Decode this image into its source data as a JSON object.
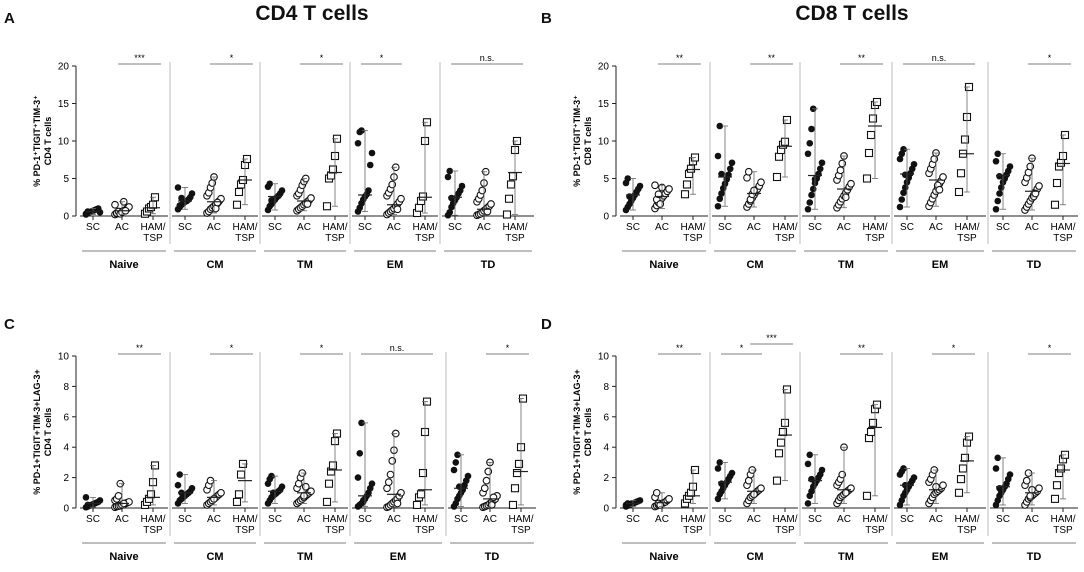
{
  "titles": {
    "left": "CD4 T cells",
    "right": "CD8 T cells"
  },
  "chart_data": [
    {
      "panel": "A",
      "type": "scatter",
      "ylabel_lines": [
        "% PD-1⁺TIGIT⁺TIM-3⁺",
        "CD4 T cells"
      ],
      "ylim": [
        0,
        20
      ],
      "yticks": [
        "0",
        "5",
        "10",
        "15",
        "20"
      ],
      "xlabels": [
        "SC",
        "AC",
        "HAM/TSP"
      ],
      "groups": [
        {
          "name": "Naive",
          "sig": "***",
          "sig_span": "AC-HAM",
          "SC": [
            0.2,
            0.4,
            0.5,
            0.6,
            0.7,
            0.8,
            0.9,
            1.0,
            0.5,
            0.3,
            0.6
          ],
          "AC": [
            0.2,
            0.3,
            0.4,
            0.5,
            0.6,
            0.7,
            0.8,
            1.0,
            1.2,
            1.5,
            0.4,
            0.6,
            0.3,
            0.5,
            1.9,
            0.7
          ],
          "HAM": [
            0.3,
            0.6,
            1.0,
            1.2,
            1.5,
            2.5
          ],
          "mean": {
            "SC": 0.6,
            "AC": 0.7,
            "HAM": 1.1
          }
        },
        {
          "name": "CM",
          "sig": "*",
          "sig_span": "AC-HAM",
          "SC": [
            0.9,
            1.2,
            1.5,
            1.7,
            1.9,
            2.0,
            2.2,
            2.5,
            3.0,
            3.8,
            1.4,
            2.4
          ],
          "AC": [
            0.4,
            0.6,
            0.9,
            1.1,
            1.3,
            1.5,
            1.7,
            2.0,
            2.3,
            2.7,
            3.1,
            3.8,
            4.4,
            5.2,
            1.0,
            1.8
          ],
          "HAM": [
            1.5,
            3.2,
            4.2,
            4.8,
            6.8,
            7.6
          ],
          "mean": {
            "SC": 2.0,
            "AC": 1.9,
            "HAM": 4.8
          }
        },
        {
          "name": "TM",
          "sig": "*",
          "sig_span": "AC-HAM",
          "SC": [
            0.8,
            1.3,
            1.6,
            1.9,
            2.2,
            2.5,
            2.7,
            3.0,
            3.4,
            3.9,
            4.3,
            2.1
          ],
          "AC": [
            0.7,
            0.9,
            1.1,
            1.3,
            1.5,
            1.7,
            1.9,
            2.1,
            2.4,
            2.7,
            3.0,
            3.5,
            4.1,
            4.6,
            5.0,
            1.6
          ],
          "HAM": [
            1.3,
            5.0,
            5.4,
            6.2,
            8.0,
            10.3
          ],
          "mean": {
            "SC": 2.6,
            "AC": 2.0,
            "HAM": 5.8
          }
        },
        {
          "name": "EM",
          "sig": "*",
          "sig_span": "SC-AC",
          "SC": [
            0.6,
            1.1,
            1.7,
            2.2,
            2.6,
            2.9,
            3.4,
            6.8,
            8.4,
            9.7,
            11.2,
            11.4
          ],
          "AC": [
            0.2,
            0.4,
            0.6,
            0.8,
            1.0,
            1.3,
            1.6,
            1.9,
            2.3,
            2.7,
            3.1,
            3.6,
            4.2,
            5.2,
            6.5,
            0.9
          ],
          "HAM": [
            0.4,
            1.1,
            2.0,
            2.6,
            10.0,
            12.5
          ],
          "mean": {
            "SC": 2.8,
            "AC": 1.5,
            "HAM": 2.5
          }
        },
        {
          "name": "TD",
          "sig": "n.s.",
          "sig_span": "SC-HAM",
          "SC": [
            0.1,
            0.5,
            1.2,
            1.7,
            2.1,
            2.5,
            3.0,
            3.4,
            4.0,
            5.2,
            6.0,
            2.4
          ],
          "AC": [
            0.1,
            0.2,
            0.3,
            0.5,
            0.7,
            0.9,
            1.1,
            1.3,
            1.6,
            1.9,
            2.3,
            2.8,
            3.4,
            4.4,
            5.9,
            0.6
          ],
          "HAM": [
            0.2,
            2.3,
            4.2,
            5.3,
            8.8,
            10.0
          ],
          "mean": {
            "SC": 2.5,
            "AC": 0.9,
            "HAM": 5.8
          }
        }
      ]
    },
    {
      "panel": "B",
      "type": "scatter",
      "ylabel_lines": [
        "% PD-1⁺TIGIT⁺TIM-3⁺",
        "CD8 T cells"
      ],
      "ylim": [
        0,
        20
      ],
      "yticks": [
        "0",
        "5",
        "10",
        "15",
        "20"
      ],
      "xlabels": [
        "SC",
        "AC",
        "HAM/TSP"
      ],
      "groups": [
        {
          "name": "Naive",
          "sig": "**",
          "sig_span": "AC-HAM",
          "SC": [
            0.8,
            1.2,
            1.6,
            2.0,
            2.4,
            2.8,
            3.2,
            3.6,
            4.0,
            4.4,
            5.0,
            2.6
          ],
          "AC": [
            1.0,
            1.4,
            1.8,
            2.1,
            2.4,
            2.7,
            3.0,
            3.3,
            3.6,
            4.1,
            2.2,
            2.9,
            1.6,
            3.8
          ],
          "HAM": [
            2.9,
            4.2,
            5.6,
            6.3,
            7.3,
            7.8
          ],
          "mean": {
            "SC": 2.8,
            "AC": 2.6,
            "HAM": 6.2
          }
        },
        {
          "name": "CM",
          "sig": "**",
          "sig_span": "AC-HAM",
          "SC": [
            1.3,
            2.3,
            3.0,
            3.7,
            4.3,
            4.9,
            5.5,
            6.3,
            7.1,
            8.0,
            12.0,
            5.6
          ],
          "AC": [
            1.2,
            1.6,
            2.0,
            2.4,
            2.8,
            3.2,
            3.6,
            4.0,
            4.5,
            5.1,
            5.9,
            2.2,
            2.9,
            3.4
          ],
          "HAM": [
            5.2,
            7.9,
            8.8,
            9.5,
            9.9,
            12.8
          ],
          "mean": {
            "SC": 5.2,
            "AC": 3.0,
            "HAM": 9.3
          }
        },
        {
          "name": "TM",
          "sig": "**",
          "sig_span": "AC-HAM",
          "SC": [
            0.9,
            1.8,
            2.8,
            3.6,
            4.4,
            5.0,
            5.6,
            6.3,
            7.1,
            8.3,
            9.7,
            11.6,
            14.3,
            4.9
          ],
          "AC": [
            1.1,
            1.5,
            1.9,
            2.3,
            2.7,
            3.1,
            3.5,
            3.9,
            4.3,
            4.8,
            5.4,
            6.1,
            7.0,
            8.0,
            2.5
          ],
          "HAM": [
            5.0,
            8.4,
            10.8,
            13.0,
            14.8,
            15.2
          ],
          "mean": {
            "SC": 5.4,
            "AC": 3.6,
            "HAM": 12.0
          }
        },
        {
          "name": "EM",
          "sig": "n.s.",
          "sig_span": "SC-HAM",
          "SC": [
            1.2,
            2.2,
            3.1,
            3.8,
            4.5,
            5.1,
            5.7,
            6.3,
            6.9,
            7.6,
            8.3,
            8.9,
            5.5
          ],
          "AC": [
            1.3,
            1.8,
            2.3,
            2.8,
            3.3,
            3.8,
            4.3,
            4.7,
            5.2,
            5.7,
            6.3,
            6.9,
            7.6,
            8.4,
            4.1,
            3.5
          ],
          "HAM": [
            3.2,
            5.7,
            8.3,
            10.2,
            13.2,
            17.2
          ],
          "mean": {
            "SC": 5.6,
            "AC": 4.8,
            "HAM": 8.3
          }
        },
        {
          "name": "TD",
          "sig": "*",
          "sig_span": "AC-HAM",
          "SC": [
            0.9,
            2.0,
            3.0,
            3.8,
            4.5,
            5.0,
            5.5,
            6.0,
            6.6,
            7.3,
            8.3,
            5.3
          ],
          "AC": [
            0.8,
            1.2,
            1.6,
            2.0,
            2.4,
            2.8,
            3.2,
            3.6,
            4.0,
            4.5,
            5.1,
            5.8,
            6.6,
            7.7,
            2.6,
            3.0
          ],
          "HAM": [
            1.5,
            4.4,
            6.6,
            7.1,
            8.0,
            10.8
          ],
          "mean": {
            "SC": 5.4,
            "AC": 3.3,
            "HAM": 7.0
          }
        }
      ]
    },
    {
      "panel": "C",
      "type": "scatter",
      "ylabel_lines": [
        "% PD-1+TIGIT+TIM-3+LAG-3+",
        "CD4 T cells"
      ],
      "ylim": [
        0,
        10
      ],
      "yticks": [
        "0",
        "2",
        "4",
        "6",
        "8",
        "10"
      ],
      "xlabels": [
        "SC",
        "AC",
        "HAM/TSP"
      ],
      "groups": [
        {
          "name": "Naive",
          "sig": "**",
          "sig_span": "AC-HAM",
          "SC": [
            0.05,
            0.1,
            0.15,
            0.2,
            0.25,
            0.3,
            0.35,
            0.4,
            0.5,
            0.7,
            0.2
          ],
          "AC": [
            0.05,
            0.1,
            0.12,
            0.15,
            0.2,
            0.25,
            0.3,
            0.35,
            0.4,
            0.5,
            0.6,
            0.8,
            1.6,
            0.2,
            0.3
          ],
          "HAM": [
            0.2,
            0.4,
            0.6,
            0.9,
            1.7,
            2.8
          ],
          "mean": {
            "SC": 0.3,
            "AC": 0.3,
            "HAM": 0.7
          }
        },
        {
          "name": "CM",
          "sig": "*",
          "sig_span": "AC-HAM",
          "SC": [
            0.3,
            0.5,
            0.6,
            0.7,
            0.8,
            0.9,
            1.0,
            1.1,
            1.3,
            1.5,
            2.2,
            1.0
          ],
          "AC": [
            0.2,
            0.3,
            0.4,
            0.5,
            0.6,
            0.7,
            0.8,
            0.9,
            1.0,
            1.2,
            1.5,
            1.8,
            0.5,
            0.6
          ],
          "HAM": [
            0.4,
            0.9,
            2.2,
            2.9
          ],
          "mean": {
            "SC": 1.0,
            "AC": 0.7,
            "HAM": 1.8
          }
        },
        {
          "name": "TM",
          "sig": "*",
          "sig_span": "AC-HAM",
          "SC": [
            0.3,
            0.5,
            0.7,
            0.8,
            0.9,
            1.0,
            1.1,
            1.2,
            1.4,
            1.6,
            1.9,
            2.1,
            1.0
          ],
          "AC": [
            0.3,
            0.4,
            0.5,
            0.6,
            0.7,
            0.8,
            0.9,
            1.0,
            1.1,
            1.3,
            1.6,
            2.0,
            2.3,
            0.8,
            1.4
          ],
          "HAM": [
            0.4,
            1.6,
            2.4,
            2.8,
            4.4,
            4.9
          ],
          "mean": {
            "SC": 1.1,
            "AC": 1.0,
            "HAM": 2.5
          }
        },
        {
          "name": "EM",
          "sig": "n.s.",
          "sig_span": "SC-HAM",
          "SC": [
            0.1,
            0.2,
            0.3,
            0.4,
            0.6,
            0.8,
            1.0,
            1.3,
            1.6,
            2.0,
            3.6,
            5.6,
            0.5
          ],
          "AC": [
            0.05,
            0.1,
            0.2,
            0.3,
            0.4,
            0.5,
            0.6,
            0.8,
            1.0,
            1.3,
            1.7,
            2.2,
            3.1,
            3.8,
            4.9,
            0.3
          ],
          "HAM": [
            0.2,
            0.7,
            0.9,
            2.3,
            5.0,
            7.0
          ],
          "mean": {
            "SC": 0.8,
            "AC": 0.9,
            "HAM": 1.2
          }
        },
        {
          "name": "TD",
          "sig": "*",
          "sig_span": "AC-HAM",
          "SC": [
            0.1,
            0.3,
            0.6,
            0.8,
            1.0,
            1.2,
            1.5,
            1.8,
            2.1,
            2.5,
            3.0,
            3.5,
            1.4
          ],
          "AC": [
            0.05,
            0.1,
            0.15,
            0.2,
            0.3,
            0.4,
            0.5,
            0.6,
            0.8,
            1.0,
            1.3,
            1.8,
            2.4,
            3.0,
            0.2,
            0.7
          ],
          "HAM": [
            0.2,
            1.3,
            2.3,
            2.9,
            4.0,
            7.2
          ],
          "mean": {
            "SC": 1.3,
            "AC": 0.6,
            "HAM": 2.4
          }
        }
      ]
    },
    {
      "panel": "D",
      "type": "scatter",
      "ylabel_lines": [
        "% PD-1+TIGIT+TIM-3+LAG-3+",
        "CD8 T cells"
      ],
      "ylim": [
        0,
        10
      ],
      "yticks": [
        "0",
        "2",
        "4",
        "6",
        "8",
        "10"
      ],
      "xlabels": [
        "SC",
        "AC",
        "HAM/TSP"
      ],
      "groups": [
        {
          "name": "Naive",
          "sig": "**",
          "sig_span": "AC-HAM",
          "SC": [
            0.1,
            0.15,
            0.2,
            0.25,
            0.3,
            0.35,
            0.4,
            0.45,
            0.5,
            0.2,
            0.3
          ],
          "AC": [
            0.1,
            0.15,
            0.2,
            0.25,
            0.3,
            0.35,
            0.4,
            0.5,
            0.6,
            0.7,
            1.0,
            0.3,
            0.2
          ],
          "HAM": [
            0.3,
            0.6,
            0.8,
            1.0,
            1.4,
            2.5
          ],
          "mean": {
            "SC": 0.3,
            "AC": 0.35,
            "HAM": 0.8
          }
        },
        {
          "name": "CM",
          "sig": "*",
          "sig_span": "SC-AC",
          "sig2": "***",
          "sig2_span": "AC-HAM",
          "SC": [
            0.6,
            0.9,
            1.1,
            1.3,
            1.5,
            1.7,
            1.9,
            2.1,
            2.3,
            2.6,
            3.0,
            1.6
          ],
          "AC": [
            0.3,
            0.5,
            0.7,
            0.8,
            0.9,
            1.0,
            1.1,
            1.2,
            1.3,
            1.5,
            1.8,
            2.2,
            2.5,
            0.9
          ],
          "HAM": [
            1.8,
            3.6,
            4.3,
            5.0,
            5.6,
            7.8
          ],
          "mean": {
            "SC": 1.7,
            "AC": 1.1,
            "HAM": 4.8
          }
        },
        {
          "name": "TM",
          "sig": "**",
          "sig_span": "AC-HAM",
          "SC": [
            0.3,
            0.8,
            1.1,
            1.4,
            1.6,
            1.8,
            2.0,
            2.2,
            2.5,
            2.9,
            3.5,
            1.9
          ],
          "AC": [
            0.3,
            0.5,
            0.7,
            0.8,
            0.9,
            1.0,
            1.1,
            1.2,
            1.3,
            1.5,
            1.7,
            1.9,
            2.2,
            4.0,
            1.0
          ],
          "HAM": [
            0.8,
            4.6,
            5.0,
            5.6,
            6.5,
            6.8
          ],
          "mean": {
            "SC": 1.8,
            "AC": 1.2,
            "HAM": 5.3
          }
        },
        {
          "name": "EM",
          "sig": "*",
          "sig_span": "AC-HAM",
          "SC": [
            0.2,
            0.5,
            0.8,
            1.0,
            1.2,
            1.4,
            1.6,
            1.8,
            2.0,
            2.2,
            2.4,
            2.6,
            1.5
          ],
          "AC": [
            0.3,
            0.5,
            0.7,
            0.9,
            1.0,
            1.1,
            1.2,
            1.3,
            1.5,
            1.7,
            1.9,
            2.2,
            2.5,
            1.4
          ],
          "HAM": [
            1.0,
            1.9,
            2.6,
            3.3,
            4.3,
            4.7
          ],
          "mean": {
            "SC": 1.5,
            "AC": 1.2,
            "HAM": 3.1
          }
        },
        {
          "name": "TD",
          "sig": "*",
          "sig_span": "AC-HAM",
          "SC": [
            0.2,
            0.5,
            0.8,
            1.0,
            1.2,
            1.4,
            1.6,
            1.9,
            2.2,
            2.6,
            3.3,
            1.3
          ],
          "AC": [
            0.2,
            0.4,
            0.6,
            0.7,
            0.8,
            0.9,
            1.0,
            1.1,
            1.3,
            1.5,
            1.8,
            2.3,
            0.8,
            1.2
          ],
          "HAM": [
            0.6,
            1.5,
            2.3,
            2.6,
            3.2,
            3.5
          ],
          "mean": {
            "SC": 1.4,
            "AC": 1.0,
            "HAM": 2.5
          }
        }
      ]
    }
  ]
}
